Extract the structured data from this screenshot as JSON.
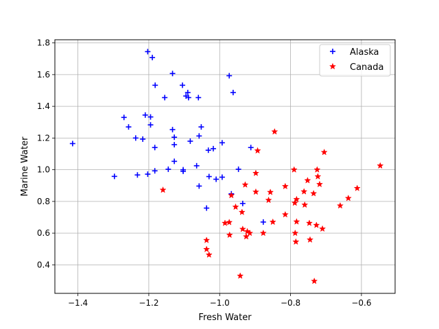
{
  "chart_data": {
    "type": "scatter",
    "title": "",
    "xlabel": "Fresh Water",
    "ylabel": "Marine Water",
    "xlim": [
      -1.465,
      -0.505
    ],
    "ylim": [
      0.22,
      1.82
    ],
    "xticks": [
      -1.4,
      -1.2,
      -1.0,
      -0.8,
      -0.6
    ],
    "xtick_labels": [
      "−1.4",
      "−1.2",
      "−1.0",
      "−0.8",
      "−0.6"
    ],
    "yticks": [
      0.4,
      0.6,
      0.8,
      1.0,
      1.2,
      1.4,
      1.6,
      1.8
    ],
    "ytick_labels": [
      "0.4",
      "0.6",
      "0.8",
      "1.0",
      "1.2",
      "1.4",
      "1.6",
      "1.8"
    ],
    "grid": true,
    "legend_position": "top-right",
    "series": [
      {
        "name": "Alaska",
        "color": "#0000ff",
        "marker": "plus",
        "points": [
          [
            -1.415,
            1.165
          ],
          [
            -1.297,
            0.958
          ],
          [
            -1.27,
            1.33
          ],
          [
            -1.257,
            1.27
          ],
          [
            -1.237,
            1.2
          ],
          [
            -1.232,
            0.967
          ],
          [
            -1.217,
            1.193
          ],
          [
            -1.21,
            1.345
          ],
          [
            -1.203,
            1.745
          ],
          [
            -1.203,
            0.972
          ],
          [
            -1.195,
            1.283
          ],
          [
            -1.195,
            1.333
          ],
          [
            -1.19,
            1.708
          ],
          [
            -1.183,
            1.14
          ],
          [
            -1.183,
            0.993
          ],
          [
            -1.182,
            1.533
          ],
          [
            -1.155,
            1.455
          ],
          [
            -1.145,
            1.003
          ],
          [
            -1.133,
            1.607
          ],
          [
            -1.133,
            1.253
          ],
          [
            -1.128,
            1.205
          ],
          [
            -1.128,
            1.158
          ],
          [
            -1.128,
            1.053
          ],
          [
            -1.105,
            1.533
          ],
          [
            -1.103,
            1.0
          ],
          [
            -1.103,
            0.99
          ],
          [
            -1.095,
            1.465
          ],
          [
            -1.09,
            1.487
          ],
          [
            -1.088,
            1.455
          ],
          [
            -1.083,
            1.18
          ],
          [
            -1.065,
            1.025
          ],
          [
            -1.06,
            1.455
          ],
          [
            -1.058,
            1.213
          ],
          [
            -1.058,
            0.897
          ],
          [
            -1.052,
            1.27
          ],
          [
            -1.037,
            0.758
          ],
          [
            -1.032,
            1.123
          ],
          [
            -1.03,
            0.957
          ],
          [
            -1.018,
            1.133
          ],
          [
            -1.01,
            0.94
          ],
          [
            -0.993,
            1.17
          ],
          [
            -0.993,
            0.953
          ],
          [
            -0.973,
            1.593
          ],
          [
            -0.967,
            0.848
          ],
          [
            -0.962,
            1.487
          ],
          [
            -0.947,
            1.003
          ],
          [
            -0.935,
            0.787
          ],
          [
            -0.912,
            1.14
          ],
          [
            -0.877,
            0.67
          ]
        ]
      },
      {
        "name": "Canada",
        "color": "#ff0000",
        "marker": "star",
        "points": [
          [
            -1.16,
            0.872
          ],
          [
            -1.037,
            0.555
          ],
          [
            -1.037,
            0.498
          ],
          [
            -1.03,
            0.463
          ],
          [
            -0.985,
            0.663
          ],
          [
            -0.973,
            0.668
          ],
          [
            -0.972,
            0.588
          ],
          [
            -0.967,
            0.838
          ],
          [
            -0.955,
            0.765
          ],
          [
            -0.942,
            0.33
          ],
          [
            -0.937,
            0.732
          ],
          [
            -0.935,
            0.625
          ],
          [
            -0.928,
            0.905
          ],
          [
            -0.925,
            0.578
          ],
          [
            -0.922,
            0.61
          ],
          [
            -0.915,
            0.6
          ],
          [
            -0.898,
            0.978
          ],
          [
            -0.898,
            0.86
          ],
          [
            -0.893,
            1.12
          ],
          [
            -0.877,
            0.6
          ],
          [
            -0.862,
            0.808
          ],
          [
            -0.857,
            0.858
          ],
          [
            -0.85,
            0.67
          ],
          [
            -0.845,
            1.24
          ],
          [
            -0.815,
            0.717
          ],
          [
            -0.815,
            0.895
          ],
          [
            -0.79,
            1.0
          ],
          [
            -0.788,
            0.79
          ],
          [
            -0.787,
            0.6
          ],
          [
            -0.785,
            0.545
          ],
          [
            -0.783,
            0.672
          ],
          [
            -0.783,
            0.813
          ],
          [
            -0.762,
            0.862
          ],
          [
            -0.76,
            0.778
          ],
          [
            -0.752,
            0.932
          ],
          [
            -0.747,
            0.663
          ],
          [
            -0.745,
            0.558
          ],
          [
            -0.735,
            0.85
          ],
          [
            -0.733,
            0.297
          ],
          [
            -0.727,
            0.65
          ],
          [
            -0.725,
            1.0
          ],
          [
            -0.723,
            0.957
          ],
          [
            -0.718,
            0.908
          ],
          [
            -0.71,
            0.627
          ],
          [
            -0.705,
            1.11
          ],
          [
            -0.66,
            0.773
          ],
          [
            -0.637,
            0.82
          ],
          [
            -0.612,
            0.883
          ],
          [
            -0.547,
            1.025
          ]
        ]
      }
    ]
  }
}
